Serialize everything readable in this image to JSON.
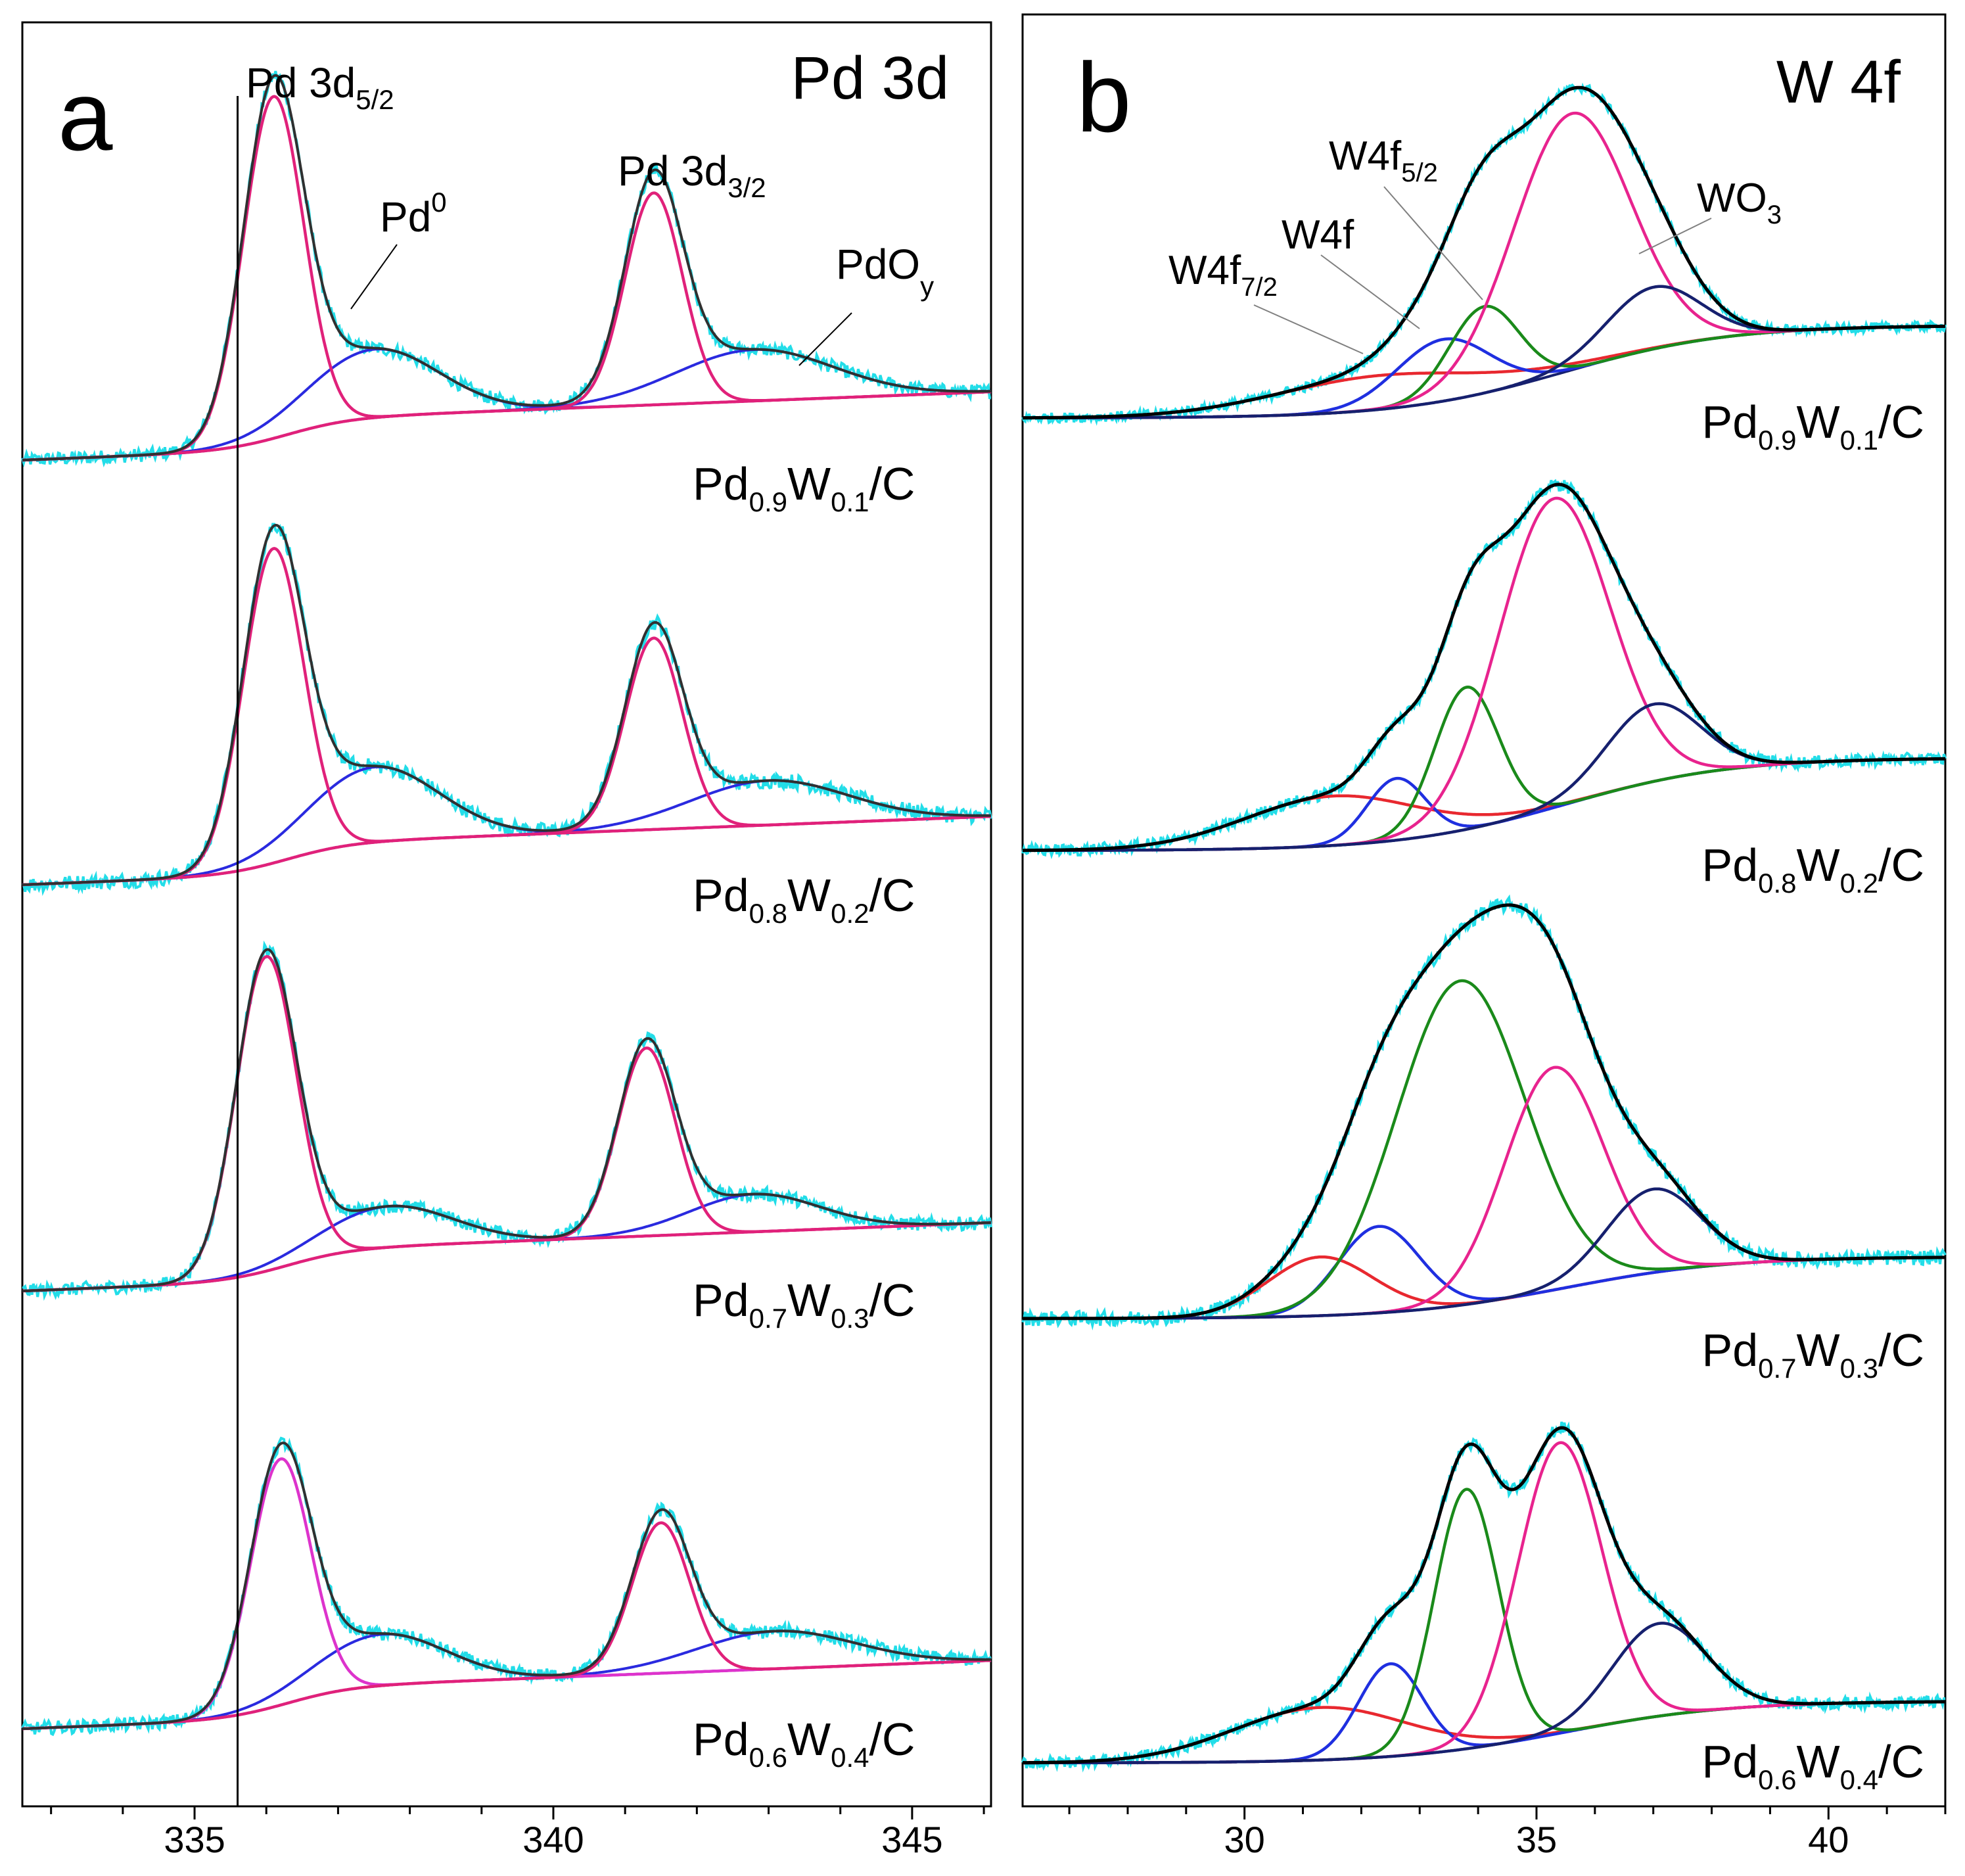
{
  "chart_data": [
    {
      "panel": "a",
      "type": "line",
      "title": "Pd 3d",
      "panel_letter": "a",
      "xlabel": "",
      "ylabel": "",
      "xlim": [
        332.6,
        346.1
      ],
      "xticks": [
        335,
        340,
        345
      ],
      "xtick_labels": [
        "335",
        "340",
        "345"
      ],
      "reference_line_x": 335.6,
      "annotations": {
        "pd32_5": {
          "main": "Pd 3d",
          "sub": "5/2"
        },
        "pd32_3": {
          "main": "Pd 3d",
          "sub": "3/2"
        },
        "pd0": {
          "main": "Pd",
          "sup": "0"
        },
        "pdoy": {
          "main": "PdO",
          "sub": "y"
        }
      },
      "series_names": [
        "raw spectrum",
        "total fit",
        "Pd0 components",
        "PdOy components",
        "background"
      ],
      "series_colors": {
        "raw": "#22dde8",
        "fit": "#303030",
        "pd0": "#e0217a",
        "pd0_alt": "#dd33cc",
        "pdoy": "#2a2adf",
        "bg": "#2a2adf"
      },
      "samples": [
        {
          "label": {
            "a": "Pd",
            "b": "0.9",
            "c": "W",
            "d": "0.1",
            "e": "/C"
          },
          "bg_start": 0.0,
          "bg_end": 0.2,
          "noise": 0.04,
          "pd0": [
            {
              "x": 336.1,
              "h": 1.0,
              "w": 0.42
            },
            {
              "x": 341.4,
              "h": 0.62,
              "w": 0.4
            }
          ],
          "pdoy": [
            {
              "x": 337.5,
              "h": 0.2,
              "w": 0.9
            },
            {
              "x": 342.8,
              "h": 0.15,
              "w": 1.1
            }
          ]
        },
        {
          "label": {
            "a": "Pd",
            "b": "0.8",
            "c": "W",
            "d": "0.2",
            "e": "/C"
          },
          "bg_start": 0.0,
          "bg_end": 0.2,
          "noise": 0.045,
          "pd0": [
            {
              "x": 336.1,
              "h": 0.92,
              "w": 0.42
            },
            {
              "x": 341.4,
              "h": 0.56,
              "w": 0.4
            }
          ],
          "pdoy": [
            {
              "x": 337.5,
              "h": 0.22,
              "w": 0.9
            },
            {
              "x": 343.0,
              "h": 0.13,
              "w": 1.1
            }
          ]
        },
        {
          "label": {
            "a": "Pd",
            "b": "0.7",
            "c": "W",
            "d": "0.3",
            "e": "/C"
          },
          "bg_start": 0.0,
          "bg_end": 0.2,
          "noise": 0.04,
          "pd0": [
            {
              "x": 336.0,
              "h": 0.92,
              "w": 0.42
            },
            {
              "x": 341.3,
              "h": 0.55,
              "w": 0.4
            }
          ],
          "pdoy": [
            {
              "x": 337.7,
              "h": 0.12,
              "w": 0.9
            },
            {
              "x": 342.8,
              "h": 0.11,
              "w": 0.9
            }
          ]
        },
        {
          "label": {
            "a": "Pd",
            "b": "0.6",
            "c": "W",
            "d": "0.4",
            "e": "/C"
          },
          "bg_start": 0.0,
          "bg_end": 0.2,
          "noise": 0.04,
          "pd0": [
            {
              "x": 336.2,
              "h": 0.72,
              "w": 0.42
            },
            {
              "x": 341.5,
              "h": 0.44,
              "w": 0.4
            }
          ],
          "pdoy": [
            {
              "x": 337.6,
              "h": 0.15,
              "w": 0.9
            },
            {
              "x": 343.1,
              "h": 0.11,
              "w": 1.1
            }
          ]
        }
      ]
    },
    {
      "panel": "b",
      "type": "line",
      "title": "W 4f",
      "panel_letter": "b",
      "xlabel": "",
      "ylabel": "",
      "xlim": [
        26.2,
        42.0
      ],
      "xticks": [
        30,
        35,
        40
      ],
      "xtick_labels": [
        "30",
        "35",
        "40"
      ],
      "annotations": {
        "w72": {
          "main": "W4f",
          "sub": "7/2"
        },
        "w4f": {
          "main": "W4f"
        },
        "w52": {
          "main": "W4f",
          "sub": "5/2"
        },
        "wo3": {
          "main": "WO",
          "sub": "3"
        }
      },
      "series_names": [
        "raw spectrum",
        "total fit",
        "W4f7/2",
        "W4f",
        "W4f5/2",
        "WO3 (magenta)",
        "WO3 (navy)",
        "background"
      ],
      "series_colors": {
        "raw": "#22dde8",
        "fit": "#000000",
        "red": "#e8282f",
        "blue": "#1f2fe0",
        "green": "#1a8a1a",
        "magenta": "#e8238e",
        "navy": "#16206e",
        "bg": "#16206e"
      },
      "samples": [
        {
          "label": {
            "a": "Pd",
            "b": "0.9",
            "c": "W",
            "d": "0.1",
            "e": "/C"
          },
          "bg_start": 0.0,
          "bg_end": 0.3,
          "noise": 0.02,
          "components": [
            {
              "color": "red",
              "x": 32.3,
              "h": 0.11,
              "w": 1.8
            },
            {
              "color": "blue",
              "x": 33.4,
              "h": 0.2,
              "w": 0.8
            },
            {
              "color": "green",
              "x": 34.1,
              "h": 0.28,
              "w": 0.6
            },
            {
              "color": "magenta",
              "x": 35.6,
              "h": 0.83,
              "w": 1.0
            },
            {
              "color": "navy",
              "x": 37.0,
              "h": 0.2,
              "w": 0.8
            }
          ]
        },
        {
          "label": {
            "a": "Pd",
            "b": "0.8",
            "c": "W",
            "d": "0.2",
            "e": "/C"
          },
          "bg_start": 0.0,
          "bg_end": 0.3,
          "noise": 0.025,
          "components": [
            {
              "color": "red",
              "x": 31.5,
              "h": 0.16,
              "w": 1.5
            },
            {
              "color": "blue",
              "x": 32.6,
              "h": 0.2,
              "w": 0.5
            },
            {
              "color": "green",
              "x": 33.8,
              "h": 0.46,
              "w": 0.55
            },
            {
              "color": "magenta",
              "x": 35.3,
              "h": 1.0,
              "w": 0.95
            },
            {
              "color": "navy",
              "x": 37.0,
              "h": 0.25,
              "w": 0.8
            }
          ]
        },
        {
          "label": {
            "a": "Pd",
            "b": "0.7",
            "c": "W",
            "d": "0.3",
            "e": "/C"
          },
          "bg_start": 0.0,
          "bg_end": 0.2,
          "noise": 0.03,
          "components": [
            {
              "color": "red",
              "x": 31.3,
              "h": 0.19,
              "w": 0.9
            },
            {
              "color": "blue",
              "x": 32.3,
              "h": 0.28,
              "w": 0.7
            },
            {
              "color": "green",
              "x": 33.7,
              "h": 1.05,
              "w": 1.1
            },
            {
              "color": "magenta",
              "x": 35.3,
              "h": 0.72,
              "w": 0.85
            },
            {
              "color": "navy",
              "x": 37.0,
              "h": 0.27,
              "w": 0.8
            }
          ]
        },
        {
          "label": {
            "a": "Pd",
            "b": "0.6",
            "c": "W",
            "d": "0.4",
            "e": "/C"
          },
          "bg_start": 0.0,
          "bg_end": 0.2,
          "noise": 0.025,
          "components": [
            {
              "color": "red",
              "x": 31.3,
              "h": 0.17,
              "w": 1.5
            },
            {
              "color": "blue",
              "x": 32.5,
              "h": 0.3,
              "w": 0.55
            },
            {
              "color": "green",
              "x": 33.8,
              "h": 0.84,
              "w": 0.55
            },
            {
              "color": "magenta",
              "x": 35.4,
              "h": 0.94,
              "w": 0.72
            },
            {
              "color": "navy",
              "x": 37.1,
              "h": 0.3,
              "w": 0.8
            }
          ]
        }
      ]
    }
  ]
}
